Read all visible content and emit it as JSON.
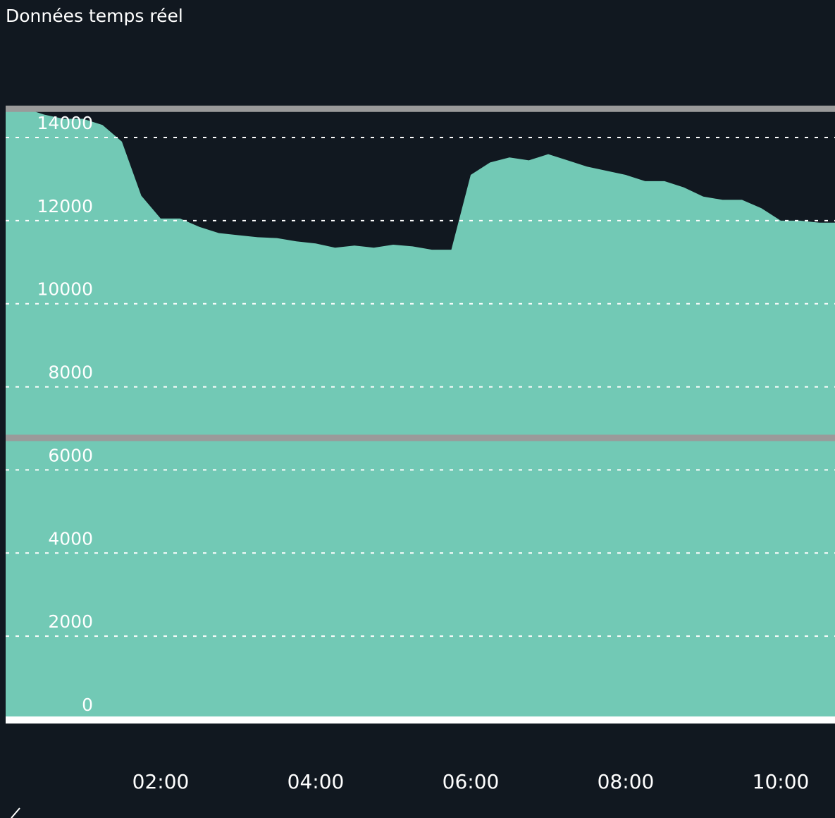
{
  "title": "Données temps réel",
  "colors": {
    "background": "#111820",
    "area": "#72c9b5",
    "grid": "#ffffff",
    "reference_line": "#9a9a9a",
    "baseline": "#ffffff"
  },
  "chart_data": {
    "type": "area",
    "title": "Données temps réel",
    "xlabel": "",
    "ylabel": "",
    "ylim": [
      0,
      14000
    ],
    "grid": true,
    "yticks": [
      0,
      2000,
      4000,
      6000,
      8000,
      10000,
      12000,
      14000
    ],
    "xticks": [
      "02:00",
      "04:00",
      "06:00",
      "08:00",
      "10:00"
    ],
    "reference_lines": [
      14700,
      6780
    ],
    "series": [
      {
        "x": [
          "00:00",
          "00:15",
          "00:30",
          "00:45",
          "01:00",
          "01:15",
          "01:30",
          "01:45",
          "02:00",
          "02:15",
          "02:30",
          "02:45",
          "03:00",
          "03:15",
          "03:30",
          "03:45",
          "04:00",
          "04:15",
          "04:30",
          "04:45",
          "05:00",
          "05:15",
          "05:30",
          "05:45",
          "06:00",
          "06:15",
          "06:30",
          "06:45",
          "07:00",
          "07:15",
          "07:30",
          "07:45",
          "08:00",
          "08:15",
          "08:30",
          "08:45",
          "09:00",
          "09:15",
          "09:30",
          "09:45",
          "10:00",
          "10:15",
          "10:30",
          "10:45"
        ],
        "values": [
          14700,
          14700,
          14550,
          14450,
          14450,
          14300,
          13900,
          12600,
          12050,
          12050,
          11850,
          11700,
          11650,
          11600,
          11580,
          11500,
          11450,
          11350,
          11400,
          11350,
          11420,
          11380,
          11300,
          11300,
          13100,
          13400,
          13520,
          13450,
          13600,
          13450,
          13300,
          13200,
          13100,
          12950,
          12950,
          12800,
          12580,
          12500,
          12500,
          12300,
          12000,
          12000,
          11950,
          11950
        ]
      }
    ]
  }
}
